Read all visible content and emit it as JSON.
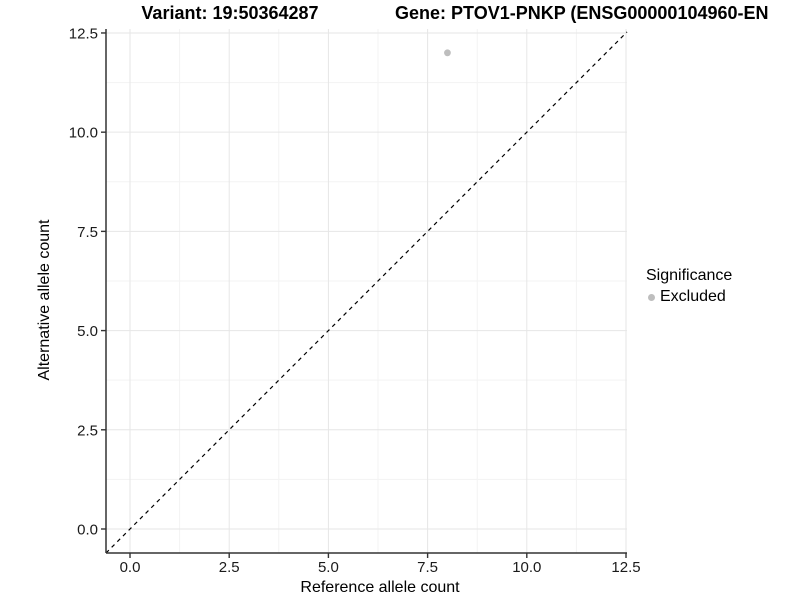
{
  "chart_data": {
    "type": "scatter",
    "title_left": "Variant: 19:50364287",
    "title_right": "Gene: PTOV1-PNKP (ENSG00000104960-EN",
    "xlabel": "Reference allele count",
    "ylabel": "Alternative allele count",
    "x_ticks": [
      "0.0",
      "2.5",
      "5.0",
      "7.5",
      "10.0",
      "12.5"
    ],
    "y_ticks": [
      "0.0",
      "2.5",
      "5.0",
      "7.5",
      "10.0",
      "12.5"
    ],
    "xlim": [
      -0.605,
      12.525
    ],
    "ylim": [
      -0.605,
      12.6
    ],
    "grid": true,
    "legend_position": "right",
    "identity_line": {
      "equation": "y = x",
      "style": "dashed",
      "color": "#000000"
    },
    "series": [
      {
        "name": "Excluded",
        "color": "#bebebe",
        "points": [
          {
            "x": 8,
            "y": 12
          }
        ]
      }
    ],
    "legend": {
      "title": "Significance",
      "items": [
        {
          "label": "Excluded",
          "color": "#bebebe"
        }
      ]
    }
  },
  "colors": {
    "background": "#ffffff",
    "grid_major": "#e6e6e6",
    "grid_minor": "#f3f3f3",
    "axis_line": "#333333",
    "tick_text": "#1a1a1a",
    "point": "#bebebe"
  }
}
